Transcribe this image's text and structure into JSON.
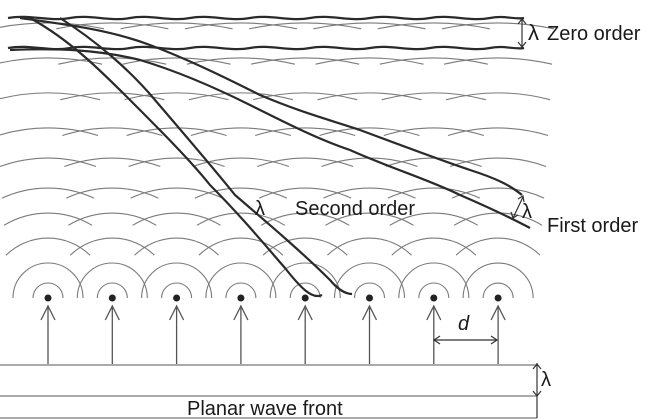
{
  "labels": {
    "zero_order": "Zero order",
    "first_order": "First order",
    "second_order": "Second order",
    "lambda_symbol": "λ",
    "slit_spacing": "d",
    "planar_wave_front": "Planar wave front"
  },
  "diagram": {
    "aperture_count": 8,
    "semantic_icons": [
      "point-source-icon",
      "up-arrow-icon"
    ]
  }
}
